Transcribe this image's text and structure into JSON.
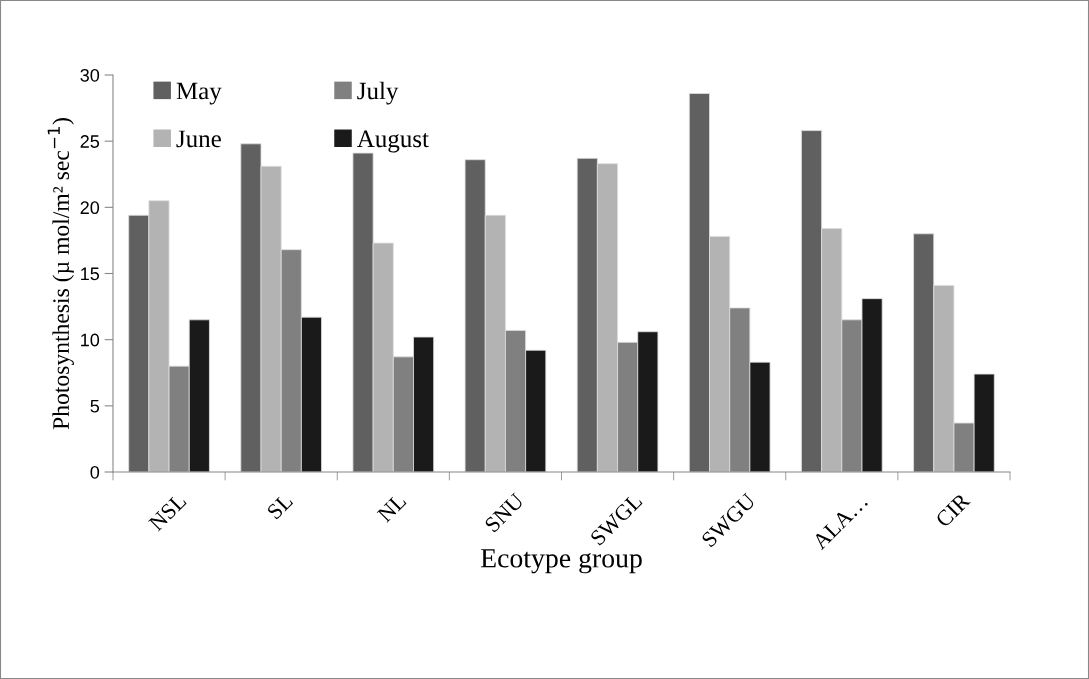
{
  "chart_data": {
    "type": "bar",
    "xlabel": "Ecotype group",
    "ylabel": "Photosynthesis (µ mol/m² sec$^{−1}$)",
    "categories": [
      "NSL",
      "SL",
      "NL",
      "SNU",
      "SWGL",
      "SWGU",
      "ALA…",
      "CIR"
    ],
    "series": [
      {
        "name": "May",
        "color": "#606060",
        "values": [
          19.4,
          24.8,
          24.1,
          23.6,
          23.7,
          28.6,
          25.8,
          18.0
        ]
      },
      {
        "name": "June",
        "color": "#b3b3b3",
        "values": [
          20.5,
          23.1,
          17.3,
          19.4,
          23.3,
          17.8,
          18.4,
          14.1
        ]
      },
      {
        "name": "July",
        "color": "#808080",
        "values": [
          8.0,
          16.8,
          8.7,
          10.7,
          9.8,
          12.4,
          11.5,
          3.7
        ]
      },
      {
        "name": "August",
        "color": "#1a1a1a",
        "values": [
          11.5,
          11.7,
          10.2,
          9.2,
          10.6,
          8.3,
          13.1,
          7.4
        ]
      }
    ],
    "ylim": [
      0,
      30
    ],
    "yticks": [
      0,
      5,
      10,
      15,
      20,
      25,
      30
    ],
    "grid": false,
    "legend": "top left"
  }
}
